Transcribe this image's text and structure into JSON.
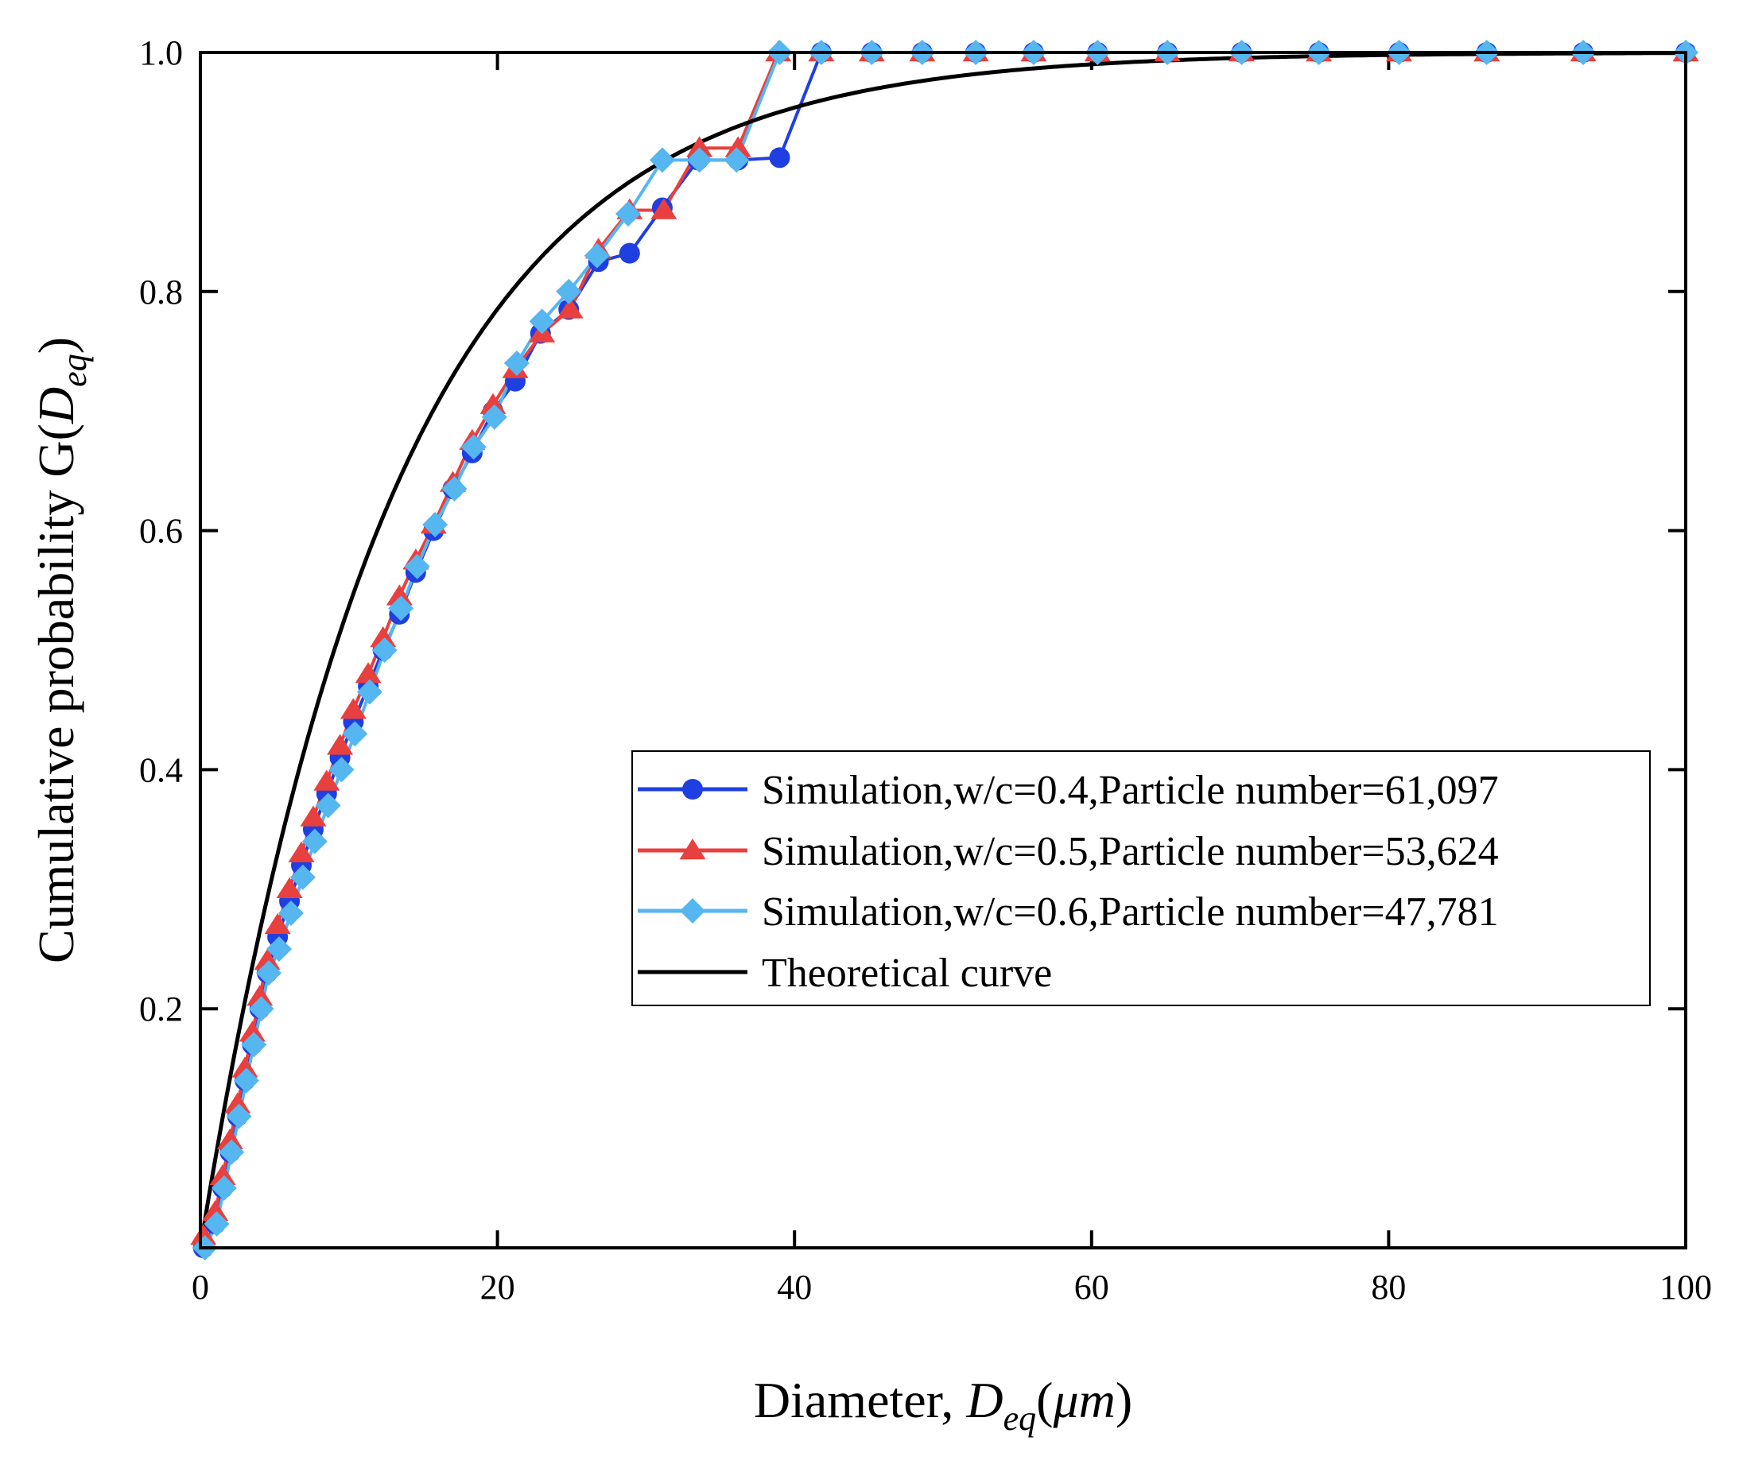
{
  "chart_data": {
    "type": "line",
    "xlabel_prefix": "Diameter, ",
    "xlabel_var": "D",
    "xlabel_sub": "eq",
    "xlabel_unit_open": "(",
    "xlabel_unit": "μm",
    "xlabel_unit_close": ")",
    "ylabel_prefix": "Cumulative probability   G(",
    "ylabel_var": "D",
    "ylabel_sub": "eq",
    "ylabel_suffix": ")",
    "xlim": [
      0,
      100
    ],
    "ylim": [
      0,
      1.0
    ],
    "x_ticks": [
      0,
      20,
      40,
      60,
      80,
      100
    ],
    "x_tick_labels": [
      "0",
      "20",
      "40",
      "60",
      "80",
      "100"
    ],
    "y_ticks": [
      0.2,
      0.4,
      0.6,
      0.8,
      1.0
    ],
    "y_tick_labels": [
      "0.2",
      "0.4",
      "0.6",
      "0.8",
      "1.0"
    ],
    "legend_position": "center-right",
    "series": [
      {
        "name": "Simulation,w/c=0.4,Particle number=61,097",
        "color": "#1f3fe0",
        "marker": "circle",
        "x": [
          0.2,
          1.0,
          1.5,
          2.0,
          2.5,
          3.0,
          3.5,
          4.0,
          4.5,
          5.2,
          6.0,
          6.8,
          7.6,
          8.5,
          9.4,
          10.3,
          11.3,
          12.3,
          13.4,
          14.5,
          15.7,
          17.0,
          18.3,
          19.7,
          21.2,
          22.9,
          24.8,
          26.8,
          28.9,
          31.1,
          33.5,
          36.2,
          39.0,
          41.8,
          45.2,
          48.6,
          52.2,
          56.1,
          60.4,
          65.1,
          70.1,
          75.3,
          80.7,
          86.6,
          93.1,
          100.0
        ],
        "y": [
          0.0,
          0.02,
          0.05,
          0.08,
          0.11,
          0.14,
          0.17,
          0.2,
          0.23,
          0.26,
          0.29,
          0.32,
          0.35,
          0.38,
          0.41,
          0.44,
          0.47,
          0.5,
          0.53,
          0.565,
          0.6,
          0.635,
          0.665,
          0.7,
          0.725,
          0.765,
          0.785,
          0.825,
          0.832,
          0.87,
          0.91,
          0.91,
          0.912,
          1.0,
          1.0,
          1.0,
          1.0,
          1.0,
          1.0,
          1.0,
          1.0,
          1.0,
          1.0,
          1.0,
          1.0,
          1.0
        ]
      },
      {
        "name": "Simulation,w/c=0.5,Particle number=53,624",
        "color": "#e8403f",
        "marker": "triangle",
        "x": [
          0.2,
          1.0,
          1.5,
          2.0,
          2.5,
          3.0,
          3.5,
          4.0,
          4.5,
          5.2,
          6.0,
          6.8,
          7.6,
          8.5,
          9.4,
          10.3,
          11.3,
          12.3,
          13.4,
          14.5,
          15.7,
          17.0,
          18.3,
          19.7,
          21.2,
          23.0,
          24.9,
          26.8,
          28.9,
          31.2,
          33.6,
          36.2,
          38.9,
          41.8,
          45.2,
          48.6,
          52.2,
          56.1,
          60.4,
          65.1,
          70.1,
          75.3,
          80.7,
          86.6,
          93.1,
          100.0
        ],
        "y": [
          0.01,
          0.03,
          0.06,
          0.09,
          0.12,
          0.15,
          0.18,
          0.21,
          0.24,
          0.27,
          0.3,
          0.33,
          0.36,
          0.39,
          0.42,
          0.45,
          0.48,
          0.51,
          0.545,
          0.575,
          0.605,
          0.64,
          0.675,
          0.705,
          0.735,
          0.765,
          0.785,
          0.835,
          0.868,
          0.868,
          0.92,
          0.92,
          1.0,
          1.0,
          1.0,
          1.0,
          1.0,
          1.0,
          1.0,
          1.0,
          1.0,
          1.0,
          1.0,
          1.0,
          1.0,
          1.0
        ]
      },
      {
        "name": "Simulation,w/c=0.6,Particle number=47,781",
        "color": "#55b6f0",
        "marker": "diamond",
        "x": [
          0.3,
          1.1,
          1.6,
          2.1,
          2.6,
          3.1,
          3.6,
          4.1,
          4.6,
          5.3,
          6.1,
          6.9,
          7.7,
          8.6,
          9.5,
          10.4,
          11.4,
          12.4,
          13.5,
          14.6,
          15.8,
          17.1,
          18.4,
          19.8,
          21.3,
          23.0,
          24.8,
          26.7,
          28.8,
          31.1,
          33.6,
          36.1,
          39.0,
          41.8,
          45.2,
          48.6,
          52.2,
          56.1,
          60.4,
          65.1,
          70.1,
          75.3,
          80.7,
          86.6,
          93.1,
          100.0
        ],
        "y": [
          0.0,
          0.02,
          0.05,
          0.08,
          0.11,
          0.14,
          0.17,
          0.2,
          0.23,
          0.25,
          0.28,
          0.31,
          0.34,
          0.37,
          0.4,
          0.43,
          0.465,
          0.5,
          0.535,
          0.57,
          0.605,
          0.635,
          0.67,
          0.695,
          0.74,
          0.775,
          0.8,
          0.83,
          0.865,
          0.91,
          0.91,
          0.91,
          1.0,
          1.0,
          1.0,
          1.0,
          1.0,
          1.0,
          1.0,
          1.0,
          1.0,
          1.0,
          1.0,
          1.0,
          1.0,
          1.0
        ]
      },
      {
        "name": "Theoretical curve",
        "color": "#000000",
        "marker": "none",
        "function": "1 - exp(-x / 13)",
        "x_range": [
          0,
          100
        ]
      }
    ]
  }
}
